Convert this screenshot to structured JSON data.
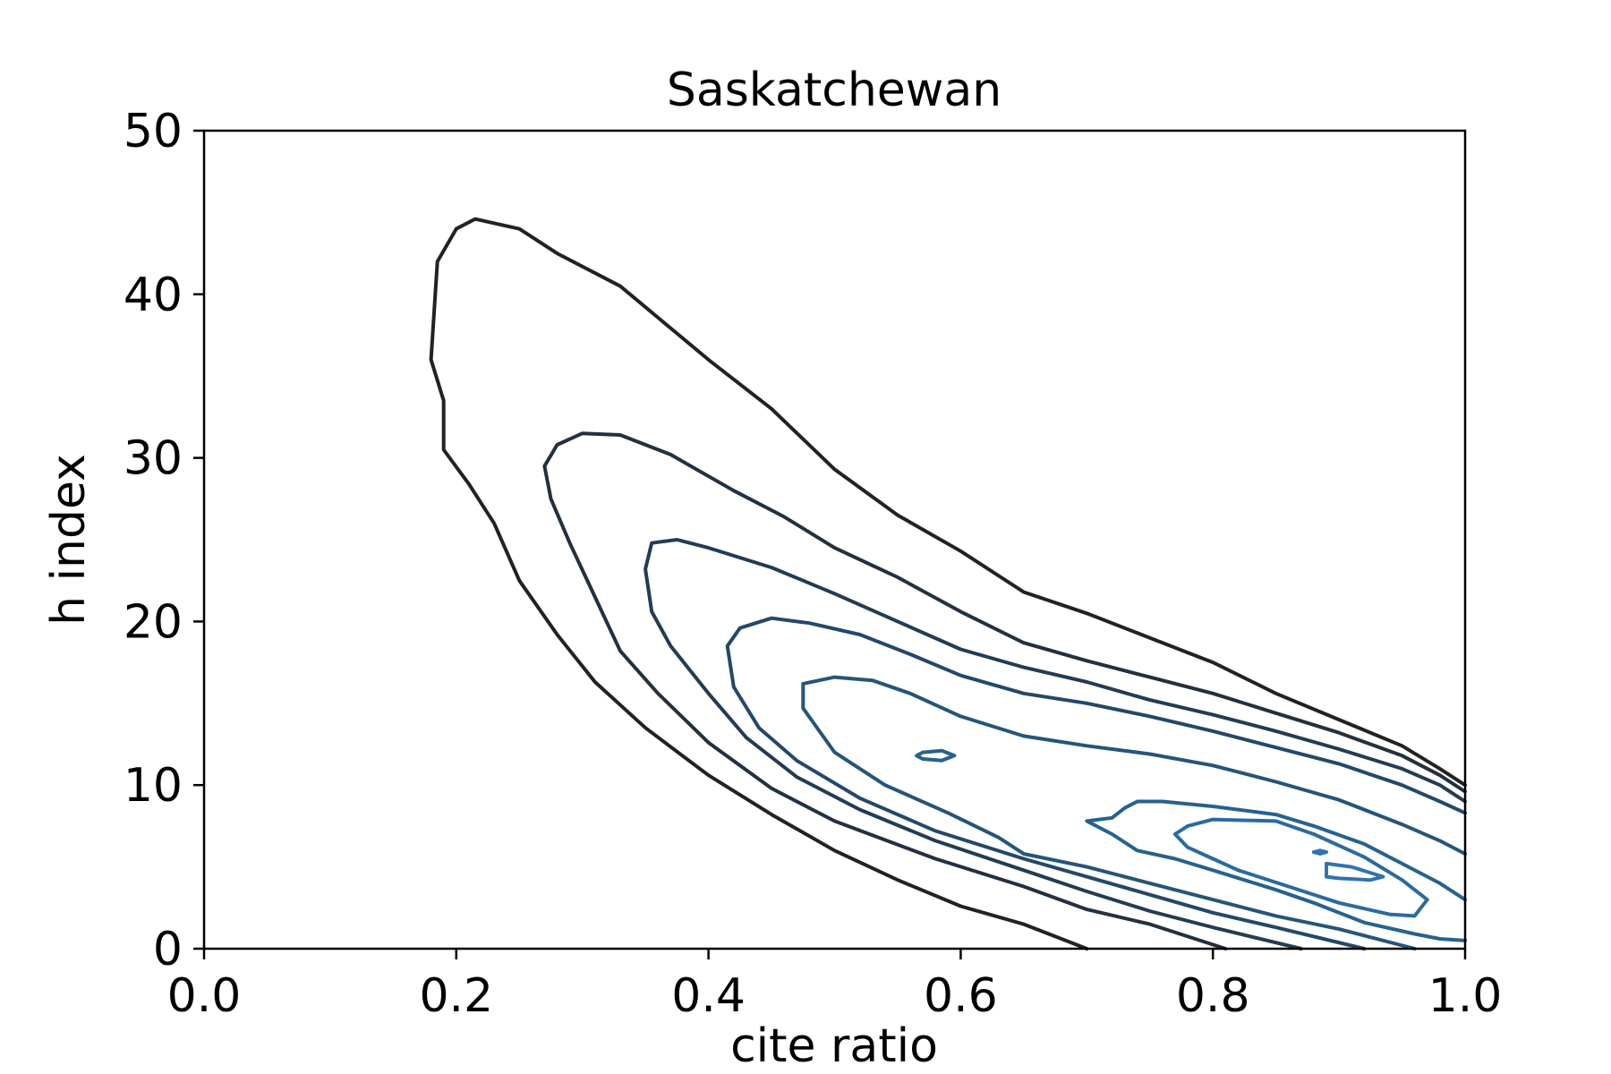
{
  "chart_data": {
    "type": "contour",
    "title": "Saskatchewan",
    "xlabel": "cite ratio",
    "ylabel": "h index",
    "xlim": [
      0.0,
      1.0
    ],
    "ylim": [
      0,
      50
    ],
    "xticks": [
      "0.0",
      "0.2",
      "0.4",
      "0.6",
      "0.8",
      "1.0"
    ],
    "yticks": [
      "0",
      "10",
      "20",
      "30",
      "40",
      "50"
    ],
    "grid": false,
    "legend": "none",
    "colors": [
      "#222222",
      "#23303f",
      "#243c52",
      "#24476a",
      "#255579",
      "#25628e",
      "#2a6aa0",
      "#2f73b0"
    ],
    "contours": [
      {
        "level": 1,
        "color": "#222222",
        "points": [
          [
            0.7,
            0
          ],
          [
            0.65,
            1.5
          ],
          [
            0.6,
            2.6
          ],
          [
            0.55,
            4.2
          ],
          [
            0.5,
            6.0
          ],
          [
            0.45,
            8.2
          ],
          [
            0.4,
            10.6
          ],
          [
            0.35,
            13.5
          ],
          [
            0.31,
            16.3
          ],
          [
            0.28,
            19.2
          ],
          [
            0.25,
            22.5
          ],
          [
            0.23,
            26.0
          ],
          [
            0.21,
            28.4
          ],
          [
            0.19,
            30.5
          ],
          [
            0.19,
            33.5
          ],
          [
            0.18,
            36.0
          ],
          [
            0.185,
            42.0
          ],
          [
            0.2,
            44.0
          ],
          [
            0.215,
            44.6
          ],
          [
            0.25,
            44.0
          ],
          [
            0.28,
            42.5
          ],
          [
            0.33,
            40.5
          ],
          [
            0.4,
            36.0
          ],
          [
            0.45,
            33.0
          ],
          [
            0.5,
            29.3
          ],
          [
            0.55,
            26.5
          ],
          [
            0.6,
            24.3
          ],
          [
            0.65,
            21.8
          ],
          [
            0.7,
            20.5
          ],
          [
            0.75,
            19.0
          ],
          [
            0.8,
            17.5
          ],
          [
            0.85,
            15.6
          ],
          [
            0.9,
            14.0
          ],
          [
            0.95,
            12.4
          ],
          [
            0.98,
            11.0
          ],
          [
            1.0,
            10.0
          ]
        ]
      },
      {
        "level": 2,
        "color": "#23303f",
        "points": [
          [
            0.81,
            0
          ],
          [
            0.75,
            1.5
          ],
          [
            0.7,
            2.4
          ],
          [
            0.65,
            3.8
          ],
          [
            0.58,
            5.5
          ],
          [
            0.5,
            7.8
          ],
          [
            0.45,
            9.8
          ],
          [
            0.4,
            12.6
          ],
          [
            0.36,
            15.6
          ],
          [
            0.33,
            18.2
          ],
          [
            0.31,
            21.5
          ],
          [
            0.29,
            24.8
          ],
          [
            0.275,
            27.5
          ],
          [
            0.27,
            29.5
          ],
          [
            0.28,
            30.8
          ],
          [
            0.3,
            31.5
          ],
          [
            0.33,
            31.4
          ],
          [
            0.37,
            30.2
          ],
          [
            0.42,
            28.0
          ],
          [
            0.46,
            26.4
          ],
          [
            0.5,
            24.5
          ],
          [
            0.55,
            22.7
          ],
          [
            0.6,
            20.6
          ],
          [
            0.65,
            18.7
          ],
          [
            0.7,
            17.6
          ],
          [
            0.75,
            16.6
          ],
          [
            0.8,
            15.6
          ],
          [
            0.85,
            14.4
          ],
          [
            0.9,
            13.2
          ],
          [
            0.95,
            11.8
          ],
          [
            0.98,
            10.6
          ],
          [
            1.0,
            9.6
          ]
        ]
      },
      {
        "level": 3,
        "color": "#243c52",
        "points": [
          [
            0.87,
            0
          ],
          [
            0.8,
            1.3
          ],
          [
            0.75,
            2.3
          ],
          [
            0.7,
            3.5
          ],
          [
            0.65,
            4.8
          ],
          [
            0.58,
            6.6
          ],
          [
            0.52,
            8.5
          ],
          [
            0.47,
            10.5
          ],
          [
            0.43,
            12.9
          ],
          [
            0.4,
            15.6
          ],
          [
            0.37,
            18.5
          ],
          [
            0.355,
            20.6
          ],
          [
            0.35,
            23.2
          ],
          [
            0.355,
            24.8
          ],
          [
            0.375,
            25.0
          ],
          [
            0.4,
            24.5
          ],
          [
            0.45,
            23.3
          ],
          [
            0.5,
            21.7
          ],
          [
            0.55,
            20.0
          ],
          [
            0.6,
            18.3
          ],
          [
            0.65,
            17.2
          ],
          [
            0.7,
            16.3
          ],
          [
            0.75,
            15.2
          ],
          [
            0.8,
            14.3
          ],
          [
            0.85,
            13.3
          ],
          [
            0.9,
            12.2
          ],
          [
            0.95,
            11.0
          ],
          [
            0.98,
            10.0
          ],
          [
            1.0,
            9.0
          ]
        ]
      },
      {
        "level": 4,
        "color": "#24476a",
        "points": [
          [
            0.92,
            0
          ],
          [
            0.85,
            1.3
          ],
          [
            0.8,
            2.2
          ],
          [
            0.75,
            3.3
          ],
          [
            0.7,
            4.4
          ],
          [
            0.65,
            5.5
          ],
          [
            0.58,
            7.2
          ],
          [
            0.52,
            9.2
          ],
          [
            0.47,
            11.5
          ],
          [
            0.44,
            13.5
          ],
          [
            0.42,
            16.0
          ],
          [
            0.415,
            18.5
          ],
          [
            0.425,
            19.6
          ],
          [
            0.45,
            20.2
          ],
          [
            0.48,
            19.9
          ],
          [
            0.52,
            19.2
          ],
          [
            0.56,
            18.0
          ],
          [
            0.6,
            16.7
          ],
          [
            0.65,
            15.6
          ],
          [
            0.7,
            15.0
          ],
          [
            0.75,
            14.2
          ],
          [
            0.8,
            13.3
          ],
          [
            0.85,
            12.3
          ],
          [
            0.9,
            11.3
          ],
          [
            0.95,
            10.0
          ],
          [
            0.98,
            9.0
          ],
          [
            1.0,
            8.3
          ]
        ]
      },
      {
        "level": 5,
        "color": "#255579",
        "points": [
          [
            0.96,
            0
          ],
          [
            0.9,
            1.2
          ],
          [
            0.85,
            2.0
          ],
          [
            0.8,
            3.0
          ],
          [
            0.75,
            4.0
          ],
          [
            0.7,
            5.0
          ],
          [
            0.65,
            5.8
          ],
          [
            0.63,
            6.8
          ],
          [
            0.59,
            8.3
          ],
          [
            0.54,
            10.0
          ],
          [
            0.5,
            12.0
          ],
          [
            0.475,
            14.7
          ],
          [
            0.475,
            16.2
          ],
          [
            0.5,
            16.6
          ],
          [
            0.53,
            16.4
          ],
          [
            0.56,
            15.6
          ],
          [
            0.6,
            14.2
          ],
          [
            0.65,
            13.0
          ],
          [
            0.7,
            12.4
          ],
          [
            0.75,
            11.9
          ],
          [
            0.8,
            11.2
          ],
          [
            0.85,
            10.2
          ],
          [
            0.9,
            9.1
          ],
          [
            0.95,
            7.6
          ],
          [
            0.98,
            6.6
          ],
          [
            1.0,
            5.8
          ]
        ]
      },
      {
        "level": 6,
        "color": "#25628e",
        "points": [
          [
            0.57,
            12.0
          ],
          [
            0.585,
            12.1
          ],
          [
            0.595,
            11.8
          ],
          [
            0.585,
            11.5
          ],
          [
            0.57,
            11.6
          ],
          [
            0.565,
            11.8
          ],
          [
            0.57,
            12.0
          ]
        ]
      },
      {
        "level": 6,
        "color": "#25628e",
        "points": [
          [
            1.0,
            3.0
          ],
          [
            0.98,
            4.0
          ],
          [
            0.95,
            5.2
          ],
          [
            0.92,
            6.4
          ],
          [
            0.88,
            7.5
          ],
          [
            0.85,
            8.2
          ],
          [
            0.8,
            8.7
          ],
          [
            0.76,
            9.0
          ],
          [
            0.74,
            9.0
          ],
          [
            0.73,
            8.6
          ],
          [
            0.72,
            8.0
          ],
          [
            0.7,
            7.8
          ],
          [
            0.72,
            7.0
          ],
          [
            0.74,
            6.0
          ],
          [
            0.77,
            5.5
          ],
          [
            0.8,
            4.8
          ],
          [
            0.85,
            3.6
          ],
          [
            0.88,
            2.8
          ],
          [
            0.92,
            1.6
          ],
          [
            0.96,
            0.9
          ],
          [
            0.98,
            0.6
          ],
          [
            1.0,
            0.5
          ]
        ]
      },
      {
        "level": 7,
        "color": "#2a6aa0",
        "points": [
          [
            0.97,
            3.0
          ],
          [
            0.96,
            2.0
          ],
          [
            0.94,
            2.1
          ],
          [
            0.9,
            2.8
          ],
          [
            0.86,
            3.8
          ],
          [
            0.82,
            4.8
          ],
          [
            0.8,
            5.5
          ],
          [
            0.78,
            6.2
          ],
          [
            0.77,
            7.0
          ],
          [
            0.78,
            7.5
          ],
          [
            0.8,
            7.9
          ],
          [
            0.85,
            7.8
          ],
          [
            0.88,
            7.0
          ],
          [
            0.92,
            5.6
          ],
          [
            0.95,
            4.2
          ],
          [
            0.97,
            3.0
          ]
        ]
      },
      {
        "level": 8,
        "color": "#2f73b0",
        "points": [
          [
            0.88,
            5.9
          ],
          [
            0.885,
            6.0
          ],
          [
            0.89,
            5.9
          ],
          [
            0.885,
            5.8
          ],
          [
            0.88,
            5.9
          ]
        ]
      },
      {
        "level": 8,
        "color": "#2f73b0",
        "points": [
          [
            0.89,
            5.2
          ],
          [
            0.91,
            5.0
          ],
          [
            0.935,
            4.4
          ],
          [
            0.925,
            4.2
          ],
          [
            0.9,
            4.3
          ],
          [
            0.89,
            4.4
          ],
          [
            0.89,
            5.2
          ]
        ]
      }
    ]
  }
}
